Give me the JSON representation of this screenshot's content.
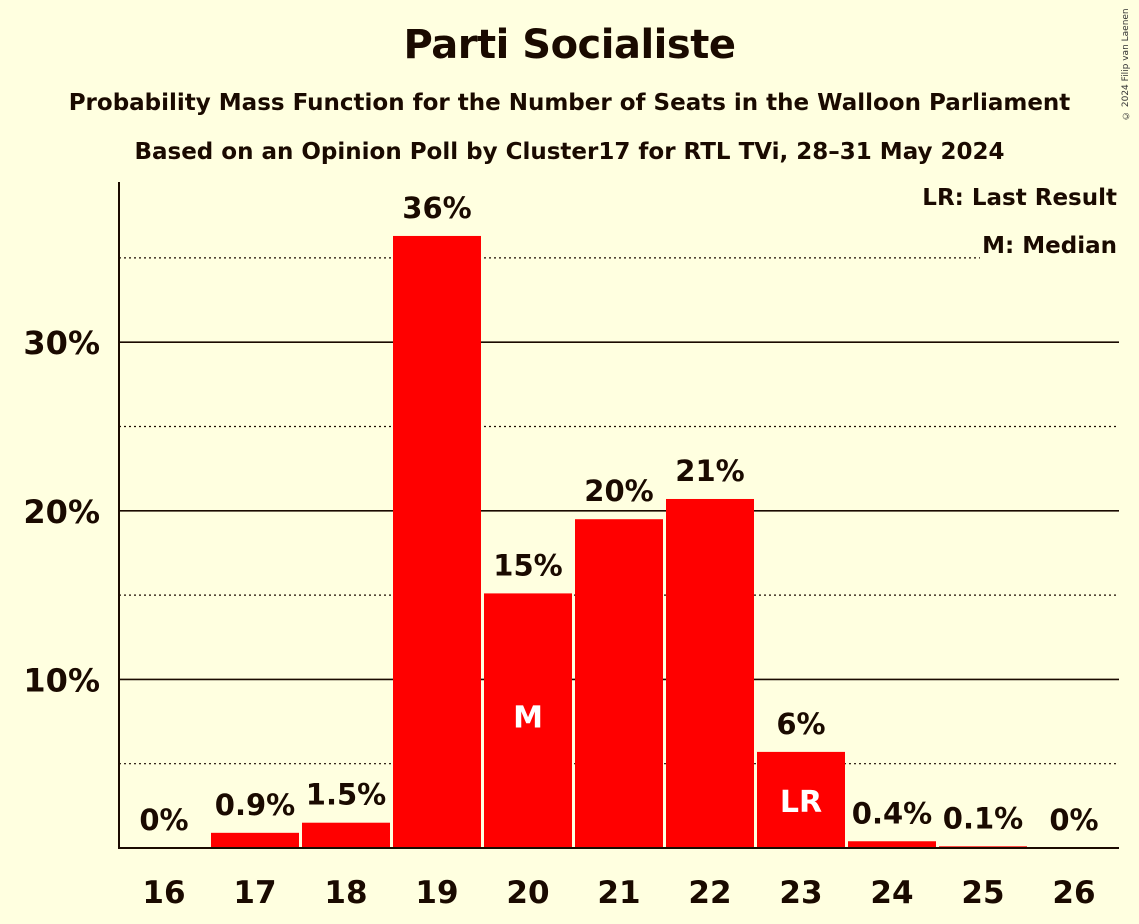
{
  "chart_data": {
    "type": "bar",
    "title": "Parti Socialiste",
    "subtitle": "Probability Mass Function for the Number of Seats in the Walloon Parliament",
    "subtitle2": "Based on an Opinion Poll by Cluster17 for RTL TVi, 28–31 May 2024",
    "copyright": "© 2024 Filip van Laenen",
    "categories": [
      "16",
      "17",
      "18",
      "19",
      "20",
      "21",
      "22",
      "23",
      "24",
      "25",
      "26"
    ],
    "values": [
      0,
      0.9,
      1.5,
      36.3,
      15.1,
      19.5,
      20.7,
      5.7,
      0.4,
      0.1,
      0
    ],
    "value_labels": [
      "0%",
      "0.9%",
      "1.5%",
      "36%",
      "15%",
      "20%",
      "21%",
      "6%",
      "0.4%",
      "0.1%",
      "0%"
    ],
    "bar_markers": {
      "20": "M",
      "23": "LR"
    },
    "yticks": [
      10,
      20,
      30
    ],
    "ytick_labels": [
      "10%",
      "20%",
      "30%"
    ],
    "ylim": [
      0,
      39.5
    ],
    "bar_color": "#ff0000",
    "background": "#ffffe0",
    "grid": true,
    "legend_placement": "top-right",
    "legend": [
      "LR: Last Result",
      "M: Median"
    ]
  }
}
